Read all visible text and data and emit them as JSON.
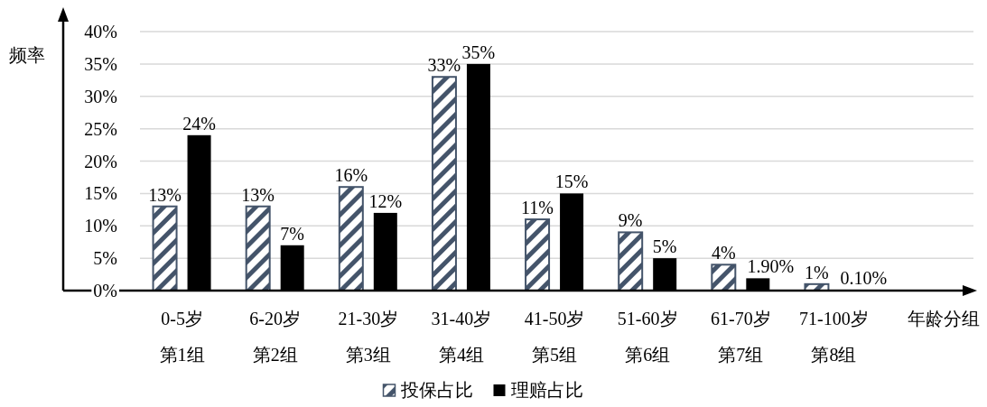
{
  "chart_data": {
    "type": "bar",
    "ylabel": "频率",
    "xlabel": "年龄分组",
    "categories": [
      "0-5岁第1组",
      "6-20岁第2组",
      "21-30岁第3组",
      "31-40岁第4组",
      "41-50岁第5组",
      "51-60岁第6组",
      "61-70岁第7组",
      "71-100岁第8组"
    ],
    "series": [
      {
        "name": "投保占比",
        "color": "#44546a",
        "values": [
          13,
          13,
          16,
          33,
          11,
          9,
          4,
          1
        ],
        "value_labels": [
          "13%",
          "13%",
          "16%",
          "33%",
          "11%",
          "9%",
          "4%",
          "1%"
        ]
      },
      {
        "name": "理赔占比",
        "color": "#000000",
        "values": [
          24,
          7,
          12,
          35,
          15,
          5,
          1.9,
          0.1
        ],
        "value_labels": [
          "24%",
          "7%",
          "12%",
          "35%",
          "15%",
          "5%",
          "1.90%",
          "0.10%"
        ]
      }
    ],
    "ylim": [
      0,
      40
    ],
    "yticks": [
      {
        "value": 0,
        "label": "0%"
      },
      {
        "value": 5,
        "label": "5%"
      },
      {
        "value": 10,
        "label": "10%"
      },
      {
        "value": 15,
        "label": "15%"
      },
      {
        "value": 20,
        "label": "20%"
      },
      {
        "value": 25,
        "label": "25%"
      },
      {
        "value": 30,
        "label": "30%"
      },
      {
        "value": 35,
        "label": "35%"
      },
      {
        "value": 40,
        "label": "40%"
      }
    ],
    "grid": "y",
    "legend": "bottom"
  }
}
